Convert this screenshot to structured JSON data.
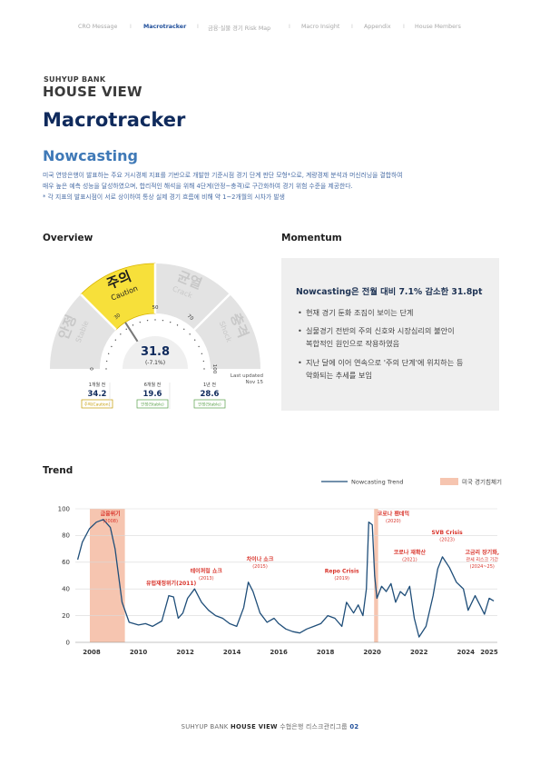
{
  "nav": {
    "items": [
      "CRO Message",
      "Macrotracker",
      "금융·실물 경기 Risk Map",
      "Macro Insight",
      "Appendix",
      "House Members"
    ],
    "active_index": 1
  },
  "header": {
    "brand_small": "SUHYUP BANK",
    "brand_big": "HOUSE VIEW",
    "title": "Macrotracker",
    "subtitle": "Nowcasting",
    "desc_lines": [
      "미국 연방은행이 발표하는 주요 거시경제 지표를 기반으로 개발한 기준시점 경기 단계 판단 모형*으로, 계량경제 분석과 머신러닝을 결합하여",
      "매우 높은 예측 성능을 달성하였으며, 합리적인 해석을 위해 4단계(안정~충격)로 구간화하여 경기 위험 수준을 제공한다.",
      "* 각 지표의 발표시점이 서로 상이하여 통상 실제 경기 흐름에 비해 약 1~2개월의 시차가 발생"
    ]
  },
  "overview": {
    "heading": "Overview",
    "zones": [
      {
        "ko": "안정",
        "en": "Stable"
      },
      {
        "ko": "주의",
        "en": "Caution"
      },
      {
        "ko": "균열",
        "en": "Crack"
      },
      {
        "ko": "충격",
        "en": "Shock"
      }
    ],
    "ticks": [
      "0",
      "30",
      "50",
      "70",
      "100"
    ],
    "value": "31.8",
    "value_numeric": 31.8,
    "change": "(-7.1%)",
    "last_updated_label": "Last updated",
    "last_updated_date": "Nov 15",
    "history": [
      {
        "label": "1개월 전",
        "value": "34.2",
        "status": "주의(Caution)",
        "status_color": "#c49a00"
      },
      {
        "label": "6개월 전",
        "value": "19.6",
        "status": "안정(Stable)",
        "status_color": "#5aa04a"
      },
      {
        "label": "1년 전",
        "value": "28.6",
        "status": "안정(Stable)",
        "status_color": "#5aa04a"
      }
    ],
    "colors": {
      "caution": "#f7e03a",
      "zone": "#e3e3e3",
      "zone_text": "#c8c8c8",
      "value": "#0f2a5c"
    }
  },
  "momentum": {
    "heading": "Momentum",
    "headline": "Nowcasting은 전월 대비 7.1% 감소한 31.8pt",
    "bullets": [
      [
        "현재 경기 둔화 조짐이 보이는 단계"
      ],
      [
        "실물경기 전반의 주의 신호와 시장심리의 불안이",
        "복합적인 원인으로 작용하였음"
      ],
      [
        "지난 달에 이어 연속으로 '주의 단계'에 위치하는 등",
        "악화되는 추세를 보임"
      ]
    ]
  },
  "trend": {
    "heading": "Trend",
    "legend_line": "Nowcasting Trend",
    "legend_shade": "미국 경기침체기",
    "line_color": "#1f4e79",
    "shade_color": "#f6c5b0",
    "annotation_color": "#d9342b"
  },
  "chart_data": {
    "type": "line",
    "series": [
      {
        "name": "Nowcasting Trend",
        "x": [
          2007.4,
          2007.6,
          2007.9,
          2008.2,
          2008.5,
          2008.8,
          2009.0,
          2009.3,
          2009.6,
          2010.0,
          2010.3,
          2010.6,
          2011.0,
          2011.3,
          2011.5,
          2011.7,
          2011.9,
          2012.1,
          2012.4,
          2012.7,
          2013.0,
          2013.3,
          2013.6,
          2013.9,
          2014.2,
          2014.5,
          2014.7,
          2014.9,
          2015.2,
          2015.5,
          2015.8,
          2016.0,
          2016.3,
          2016.6,
          2016.9,
          2017.2,
          2017.5,
          2017.8,
          2018.1,
          2018.4,
          2018.7,
          2018.9,
          2019.2,
          2019.4,
          2019.6,
          2019.75,
          2019.85,
          2020.0,
          2020.1,
          2020.2,
          2020.4,
          2020.6,
          2020.8,
          2021.0,
          2021.2,
          2021.4,
          2021.6,
          2021.8,
          2022.0,
          2022.3,
          2022.6,
          2022.8,
          2023.0,
          2023.3,
          2023.6,
          2023.9,
          2024.1,
          2024.4,
          2024.6,
          2024.8,
          2025.0,
          2025.2
        ],
        "y": [
          62,
          75,
          85,
          90,
          92,
          86,
          70,
          30,
          15,
          13,
          14,
          12,
          16,
          35,
          34,
          18,
          22,
          33,
          40,
          30,
          24,
          20,
          18,
          14,
          12,
          26,
          45,
          38,
          22,
          15,
          18,
          14,
          10,
          8,
          7,
          10,
          12,
          14,
          20,
          18,
          12,
          30,
          22,
          28,
          20,
          40,
          90,
          88,
          50,
          33,
          42,
          38,
          44,
          30,
          38,
          35,
          42,
          18,
          4,
          12,
          35,
          55,
          64,
          56,
          45,
          40,
          24,
          35,
          28,
          21,
          33,
          31
        ]
      }
    ],
    "recessions": [
      [
        2007.92,
        2009.42
      ],
      [
        2020.08,
        2020.25
      ]
    ],
    "xlim": [
      2007.3,
      2025.35
    ],
    "ylim": [
      0,
      100
    ],
    "yticks": [
      "0",
      "20",
      "40",
      "60",
      "80",
      "100"
    ],
    "xticks": [
      "2008",
      "2010",
      "2012",
      "2014",
      "2016",
      "2018",
      "2020",
      "2022",
      "2024",
      "2025"
    ],
    "xtick_values": [
      2008,
      2010,
      2012,
      2014,
      2016,
      2018,
      2020,
      2022,
      2024,
      2025
    ],
    "annotations": [
      {
        "lines": [
          "금융위기",
          "(2008)"
        ],
        "x": 2008.8,
        "y": 95,
        "big": true
      },
      {
        "lines": [
          "유럽재정위기(2011)"
        ],
        "x": 2011.4,
        "y": 43,
        "big": false
      },
      {
        "lines": [
          "테이퍼링 쇼크",
          "(2013)"
        ],
        "x": 2012.9,
        "y": 52,
        "big": false
      },
      {
        "lines": [
          "차이나 쇼크",
          "(2015)"
        ],
        "x": 2015.2,
        "y": 61,
        "big": false
      },
      {
        "lines": [
          "Repo Crisis",
          "(2019)"
        ],
        "x": 2018.7,
        "y": 52,
        "big": false
      },
      {
        "lines": [
          "코로나 팬데믹",
          "(2020)"
        ],
        "x": 2020.9,
        "y": 95,
        "big": false
      },
      {
        "lines": [
          "코로나 재확산",
          "(2021)"
        ],
        "x": 2021.6,
        "y": 66,
        "big": false
      },
      {
        "lines": [
          "SVB Crisis",
          "(2023)"
        ],
        "x": 2023.2,
        "y": 81,
        "big": false
      },
      {
        "lines": [
          "고금리 장기화,",
          "관세 리스크 기간",
          "(2024~25)"
        ],
        "x": 2024.7,
        "y": 66,
        "big": false
      }
    ],
    "grid": true,
    "legend": "top-right"
  },
  "footer": {
    "brand": "SUHYUP BANK",
    "house_view": "HOUSE VIEW",
    "org": "수협은행 리스크관리그룹",
    "page": "02"
  }
}
